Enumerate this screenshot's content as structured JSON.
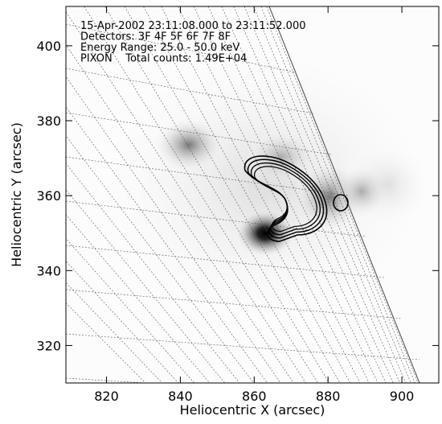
{
  "chart_data": {
    "type": "image",
    "annotations": [
      "15-Apr-2002 23:11:08.000 to 23:11:52.000",
      "Detectors: 3F 4F 5F 6F 7F 8F",
      "Energy Range: 25.0 - 50.0 keV",
      "PIXON    Total counts: 1.49E+04"
    ],
    "xlabel": "Heliocentric X (arcsec)",
    "ylabel": "Heliocentric Y (arcsec)",
    "xlim": [
      809,
      910
    ],
    "ylim": [
      310,
      410.5
    ],
    "xticks": [
      820,
      840,
      860,
      880,
      900
    ],
    "yticks": [
      320,
      340,
      360,
      380,
      400
    ]
  }
}
